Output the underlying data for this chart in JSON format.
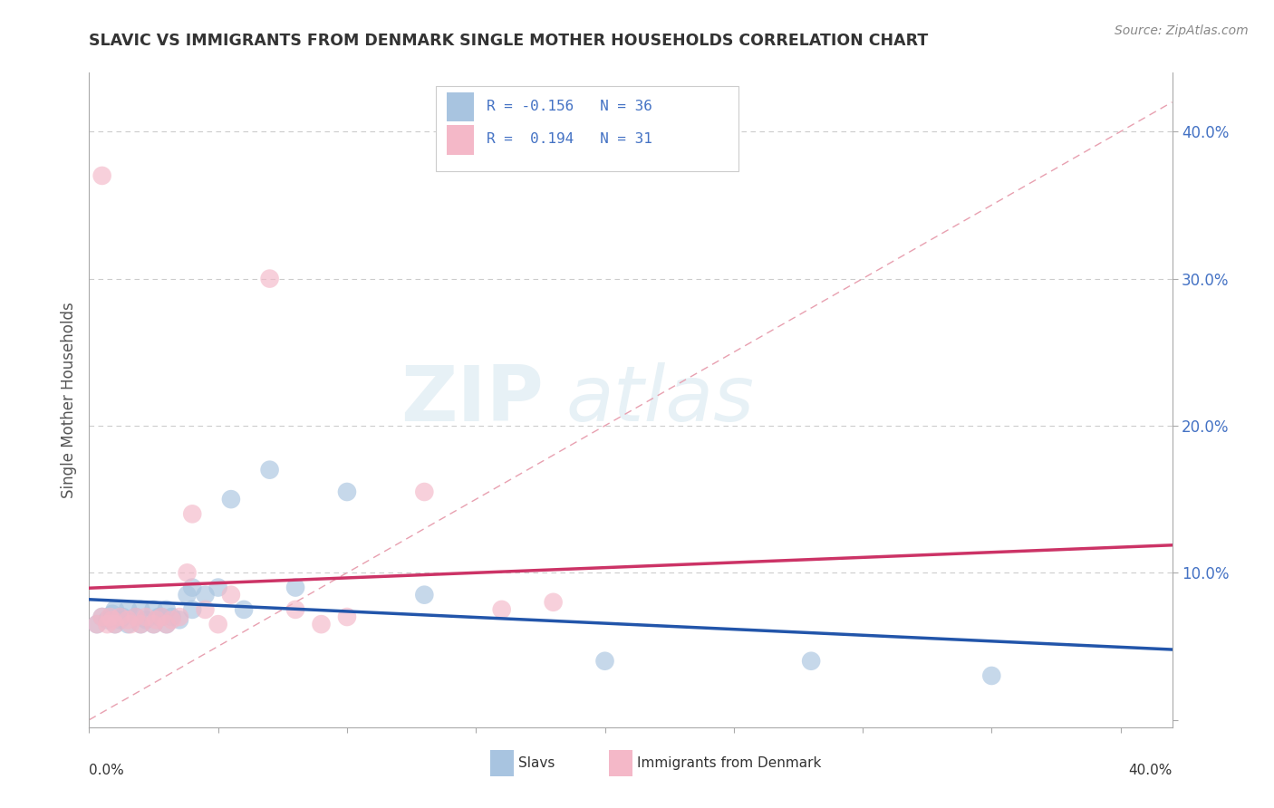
{
  "title": "SLAVIC VS IMMIGRANTS FROM DENMARK SINGLE MOTHER HOUSEHOLDS CORRELATION CHART",
  "source": "Source: ZipAtlas.com",
  "ylabel": "Single Mother Households",
  "xlim": [
    0.0,
    0.42
  ],
  "ylim": [
    -0.005,
    0.44
  ],
  "color_slavs": "#a8c4e0",
  "color_denmark": "#f4b8c8",
  "color_slavs_line": "#2255aa",
  "color_denmark_line": "#cc3366",
  "color_grid": "#cccccc",
  "background_color": "#ffffff",
  "slavs_x": [
    0.003,
    0.005,
    0.007,
    0.009,
    0.01,
    0.01,
    0.012,
    0.013,
    0.015,
    0.015,
    0.018,
    0.02,
    0.02,
    0.022,
    0.025,
    0.025,
    0.027,
    0.028,
    0.03,
    0.03,
    0.032,
    0.035,
    0.038,
    0.04,
    0.04,
    0.045,
    0.05,
    0.055,
    0.06,
    0.07,
    0.08,
    0.1,
    0.13,
    0.2,
    0.28,
    0.35
  ],
  "slavs_y": [
    0.065,
    0.07,
    0.068,
    0.072,
    0.065,
    0.075,
    0.068,
    0.07,
    0.065,
    0.075,
    0.07,
    0.065,
    0.075,
    0.068,
    0.065,
    0.075,
    0.07,
    0.07,
    0.065,
    0.075,
    0.07,
    0.068,
    0.085,
    0.09,
    0.075,
    0.085,
    0.09,
    0.15,
    0.075,
    0.17,
    0.09,
    0.155,
    0.085,
    0.04,
    0.04,
    0.03
  ],
  "denmark_x": [
    0.003,
    0.005,
    0.007,
    0.008,
    0.009,
    0.01,
    0.012,
    0.015,
    0.016,
    0.018,
    0.02,
    0.022,
    0.025,
    0.026,
    0.028,
    0.03,
    0.032,
    0.035,
    0.038,
    0.04,
    0.045,
    0.05,
    0.055,
    0.07,
    0.08,
    0.09,
    0.1,
    0.13,
    0.16,
    0.18,
    0.005
  ],
  "denmark_y": [
    0.065,
    0.07,
    0.065,
    0.07,
    0.068,
    0.065,
    0.07,
    0.068,
    0.065,
    0.07,
    0.065,
    0.07,
    0.065,
    0.068,
    0.07,
    0.065,
    0.068,
    0.07,
    0.1,
    0.14,
    0.075,
    0.065,
    0.085,
    0.3,
    0.075,
    0.065,
    0.07,
    0.155,
    0.075,
    0.08,
    0.37
  ]
}
